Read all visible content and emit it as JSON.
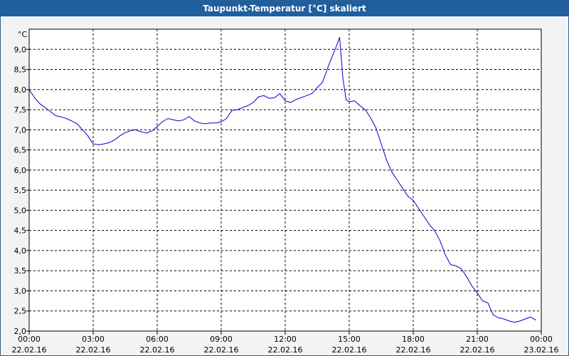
{
  "window": {
    "title": "Taupunkt-Temperatur [°C] skaliert"
  },
  "chart_data": {
    "type": "line",
    "title": "Taupunkt-Temperatur [°C] skaliert",
    "ylabel": "°C",
    "xlabel": "",
    "ylim": [
      2.0,
      9.5
    ],
    "xlim": [
      0,
      24
    ],
    "grid": true,
    "line_color": "#0000cc",
    "y_ticks": [
      "2,0",
      "2,5",
      "3,0",
      "3,5",
      "4,0",
      "4,5",
      "5,0",
      "5,5",
      "6,0",
      "6,5",
      "7,0",
      "7,5",
      "8,0",
      "8,5",
      "9,0"
    ],
    "x_ticks": [
      {
        "time": "00:00",
        "date": "22.02.16"
      },
      {
        "time": "03:00",
        "date": "22.02.16"
      },
      {
        "time": "06:00",
        "date": "22.02.16"
      },
      {
        "time": "09:00",
        "date": "22.02.16"
      },
      {
        "time": "12:00",
        "date": "22.02.16"
      },
      {
        "time": "15:00",
        "date": "22.02.16"
      },
      {
        "time": "18:00",
        "date": "22.02.16"
      },
      {
        "time": "21:00",
        "date": "22.02.16"
      },
      {
        "time": "00:00",
        "date": "23.02.16"
      }
    ],
    "series": [
      {
        "x": [
          0,
          0.25,
          0.5,
          0.75,
          1.0,
          1.25,
          1.5,
          1.75,
          2.0,
          2.25,
          2.5,
          2.75,
          3.0,
          3.25,
          3.5,
          3.75,
          4.0,
          4.25,
          4.5,
          4.75,
          5.0,
          5.25,
          5.5,
          5.75,
          6.0,
          6.25,
          6.5,
          6.75,
          7.0,
          7.25,
          7.5,
          7.75,
          8.0,
          8.25,
          8.5,
          8.75,
          9.0,
          9.25,
          9.5,
          9.75,
          10.0,
          10.25,
          10.5,
          10.75,
          11.0,
          11.25,
          11.5,
          11.75,
          12.0,
          12.25,
          12.5,
          12.75,
          13.0,
          13.25,
          13.5,
          13.75,
          14.0,
          14.15,
          14.3,
          14.45,
          14.55,
          14.7,
          14.85,
          15.0,
          15.25,
          15.5,
          15.75,
          16.0,
          16.25,
          16.5,
          16.75,
          17.0,
          17.25,
          17.5,
          17.75,
          18.0,
          18.25,
          18.5,
          18.75,
          19.0,
          19.25,
          19.5,
          19.75,
          20.0,
          20.25,
          20.5,
          20.75,
          21.0,
          21.25,
          21.5,
          21.75,
          22.0,
          22.25,
          22.5,
          22.75,
          23.0,
          23.25,
          23.5,
          23.75
        ],
        "y": [
          8.0,
          7.8,
          7.65,
          7.55,
          7.45,
          7.35,
          7.32,
          7.28,
          7.22,
          7.15,
          7.0,
          6.85,
          6.65,
          6.63,
          6.65,
          6.68,
          6.75,
          6.85,
          6.93,
          6.98,
          7.0,
          6.95,
          6.92,
          6.97,
          7.08,
          7.2,
          7.28,
          7.25,
          7.22,
          7.25,
          7.33,
          7.22,
          7.17,
          7.15,
          7.17,
          7.17,
          7.2,
          7.28,
          7.48,
          7.5,
          7.55,
          7.6,
          7.68,
          7.82,
          7.85,
          7.78,
          7.8,
          7.9,
          7.72,
          7.68,
          7.75,
          7.8,
          7.85,
          7.9,
          8.05,
          8.18,
          8.55,
          8.75,
          8.95,
          9.15,
          9.3,
          8.3,
          7.75,
          7.7,
          7.72,
          7.6,
          7.5,
          7.3,
          7.05,
          6.65,
          6.25,
          5.95,
          5.75,
          5.55,
          5.35,
          5.25,
          5.05,
          4.85,
          4.65,
          4.5,
          4.25,
          3.9,
          3.65,
          3.62,
          3.55,
          3.35,
          3.12,
          2.95,
          2.75,
          2.7,
          2.4,
          2.33,
          2.3,
          2.25,
          2.22,
          2.25,
          2.3,
          2.35,
          2.27
        ]
      }
    ]
  }
}
